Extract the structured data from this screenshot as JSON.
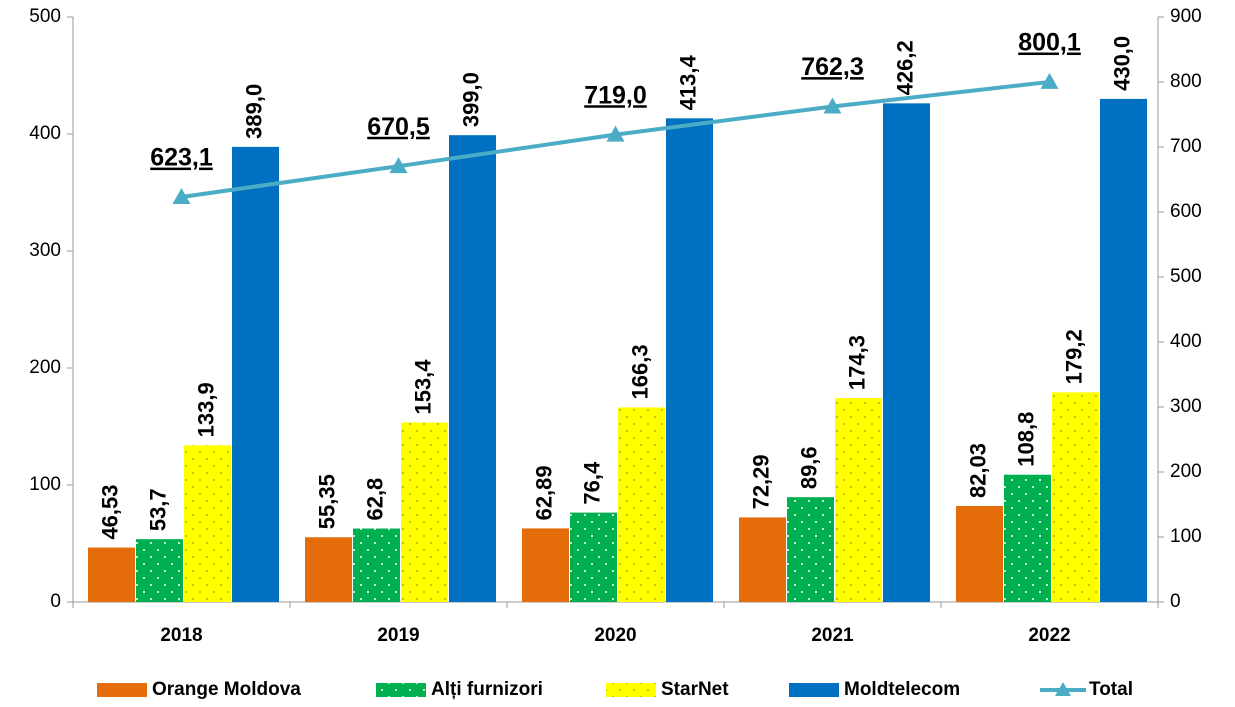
{
  "chart_data": {
    "type": "bar",
    "categories": [
      "2018",
      "2019",
      "2020",
      "2021",
      "2022"
    ],
    "series": [
      {
        "name": "Orange Moldova",
        "color": "#e46c0a",
        "values": [
          46.53,
          55.35,
          62.89,
          72.29,
          82.03
        ],
        "value_labels": [
          "46,53",
          "55,35",
          "62,89",
          "72,29",
          "82,03"
        ]
      },
      {
        "name": "Alți furnizori",
        "color": "#00b050",
        "values": [
          53.7,
          62.8,
          76.4,
          89.6,
          108.8
        ],
        "value_labels": [
          "53,7",
          "62,8",
          "76,4",
          "89,6",
          "108,8"
        ]
      },
      {
        "name": "StarNet",
        "color": "#ffff00",
        "values": [
          133.9,
          153.4,
          166.3,
          174.3,
          179.2
        ],
        "value_labels": [
          "133,9",
          "153,4",
          "166,3",
          "174,3",
          "179,2"
        ]
      },
      {
        "name": "Moldtelecom",
        "color": "#0070c0",
        "values": [
          389.0,
          399.0,
          413.4,
          426.2,
          430.0
        ],
        "value_labels": [
          "389,0",
          "399,0",
          "413,4",
          "426,2",
          "430,0"
        ]
      },
      {
        "name": "Total",
        "type": "line",
        "axis": "y2",
        "color": "#4bacc6",
        "values": [
          623.1,
          670.5,
          719.0,
          762.3,
          800.1
        ],
        "value_labels": [
          "623,1",
          "670,5",
          "719,0",
          "762,3",
          "800,1"
        ]
      }
    ],
    "ylim": [
      0,
      500
    ],
    "yticks": [
      0,
      100,
      200,
      300,
      400,
      500
    ],
    "y2lim": [
      0,
      900
    ],
    "y2ticks": [
      0,
      100,
      200,
      300,
      400,
      500,
      600,
      700,
      800,
      900
    ],
    "legend": "bottom"
  }
}
